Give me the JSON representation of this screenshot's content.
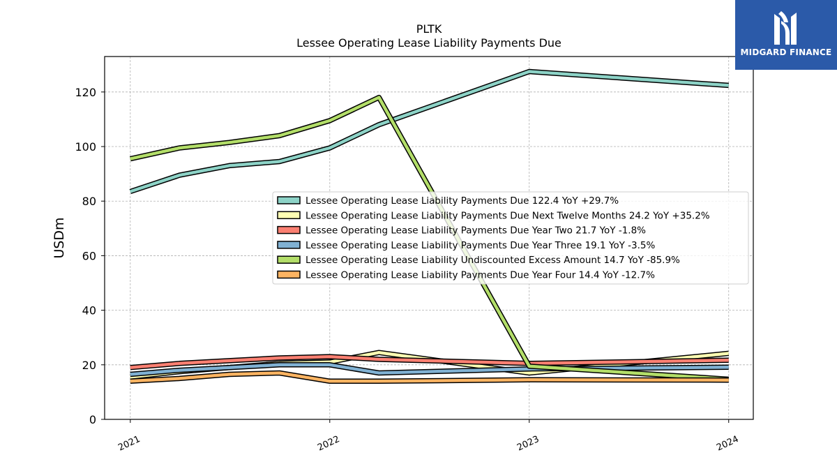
{
  "chart_data": {
    "type": "line",
    "title": "PLTK",
    "subtitle": "Lessee Operating Lease Liability Payments Due",
    "ylabel": "USDm",
    "xlabel": "",
    "ylim": [
      0,
      133
    ],
    "xlim": [
      "2020-11-15",
      "2024-02-15"
    ],
    "yticks": [
      0,
      20,
      40,
      60,
      80,
      100,
      120
    ],
    "xticks": [
      "2021-01-01",
      "2022-01-01",
      "2023-01-01",
      "2024-01-01"
    ],
    "xtick_labels": [
      "2021",
      "2022",
      "2023",
      "2024"
    ],
    "grid": true,
    "legend_position": "center-right",
    "series": [
      {
        "name": "Lessee Operating Lease Liability Payments Due  122.4 YoY +29.7%",
        "color": "#8dd3c7",
        "points": [
          [
            "2021-01-01",
            83.5
          ],
          [
            "2021-04-01",
            89.5
          ],
          [
            "2021-07-01",
            93.0
          ],
          [
            "2021-10-01",
            94.5
          ],
          [
            "2022-01-01",
            99.5
          ],
          [
            "2022-04-01",
            108.0
          ],
          [
            "2023-01-01",
            127.5
          ],
          [
            "2024-01-01",
            122.4
          ]
        ]
      },
      {
        "name": "Lessee Operating Lease Liability Payments Due Next Twelve Months  24.2 YoY +35.2%",
        "color": "#ffffb3",
        "points": [
          [
            "2021-01-01",
            15.5
          ],
          [
            "2021-04-01",
            17.5
          ],
          [
            "2021-07-01",
            19.0
          ],
          [
            "2021-10-01",
            20.5
          ],
          [
            "2022-01-01",
            21.0
          ],
          [
            "2022-04-01",
            24.5
          ],
          [
            "2023-01-01",
            17.0
          ],
          [
            "2024-01-01",
            24.2
          ]
        ]
      },
      {
        "name": "Lessee Operating Lease Liability Payments Due Year Two  21.7 YoY -1.8%",
        "color": "#fb8072",
        "points": [
          [
            "2021-01-01",
            19.0
          ],
          [
            "2021-04-01",
            20.5
          ],
          [
            "2021-07-01",
            21.5
          ],
          [
            "2021-10-01",
            22.5
          ],
          [
            "2022-01-01",
            23.0
          ],
          [
            "2022-04-01",
            22.0
          ],
          [
            "2023-01-01",
            20.5
          ],
          [
            "2024-01-01",
            21.7
          ]
        ]
      },
      {
        "name": "Lessee Operating Lease Liability Payments Due Year Three  19.1 YoY -3.5%",
        "color": "#80b1d3",
        "points": [
          [
            "2021-01-01",
            16.5
          ],
          [
            "2021-04-01",
            18.0
          ],
          [
            "2021-07-01",
            19.0
          ],
          [
            "2021-10-01",
            20.0
          ],
          [
            "2022-01-01",
            20.0
          ],
          [
            "2022-04-01",
            17.0
          ],
          [
            "2023-01-01",
            18.5
          ],
          [
            "2024-01-01",
            19.1
          ]
        ]
      },
      {
        "name": "Lessee Operating Lease Liability Undiscounted Excess Amount  14.7 YoY -85.9%",
        "color": "#b3de69",
        "points": [
          [
            "2021-01-01",
            95.5
          ],
          [
            "2021-04-01",
            99.5
          ],
          [
            "2021-07-01",
            101.5
          ],
          [
            "2021-10-01",
            104.0
          ],
          [
            "2022-01-01",
            109.5
          ],
          [
            "2022-04-01",
            118.0
          ],
          [
            "2023-01-01",
            19.5
          ],
          [
            "2024-01-01",
            14.7
          ]
        ]
      },
      {
        "name": "Lessee Operating Lease Liability Payments Due Year Four  14.4 YoY -12.7%",
        "color": "#fdb462",
        "points": [
          [
            "2021-01-01",
            14.0
          ],
          [
            "2021-04-01",
            15.0
          ],
          [
            "2021-07-01",
            16.5
          ],
          [
            "2021-10-01",
            17.0
          ],
          [
            "2022-01-01",
            14.0
          ],
          [
            "2022-04-01",
            14.0
          ],
          [
            "2023-01-01",
            14.5
          ],
          [
            "2024-01-01",
            14.4
          ]
        ]
      }
    ]
  },
  "logo": {
    "text": "MIDGARD FINANCE",
    "background": "#2b5aa9"
  }
}
